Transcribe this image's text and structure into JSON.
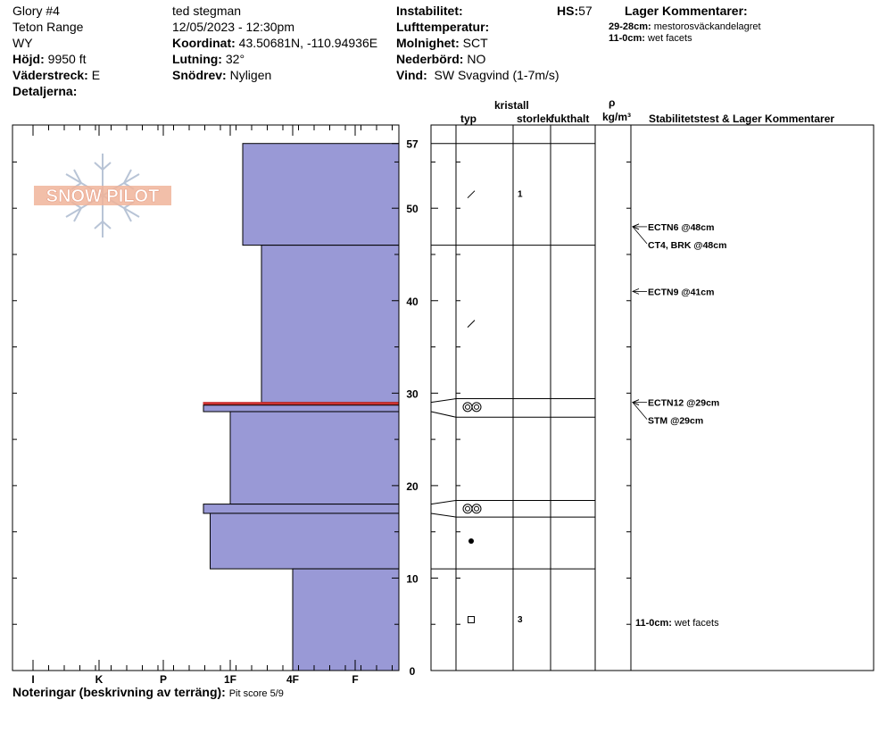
{
  "header": {
    "location": "Glory #4",
    "range": "Teton Range",
    "state": "WY",
    "elevation_label": "Höjd:",
    "elevation_value": "9950 ft",
    "aspect_label": "Väderstreck:",
    "aspect_value": "E",
    "details_label": "Detaljerna:",
    "observer": "ted stegman",
    "datetime": "12/05/2023 - 12:30pm",
    "coord_label": "Koordinat:",
    "coord_value": "43.50681N, -110.94936E",
    "slope_label": "Lutning:",
    "slope_value": "32°",
    "drift_label": "Snödrev:",
    "drift_value": "Nyligen",
    "instability_label": "Instabilitet:",
    "airtemp_label": "Lufttemperatur:",
    "sky_label": "Molnighet:",
    "sky_value": "SCT",
    "precip_label": "Nederbörd:",
    "precip_value": "NO",
    "wind_label": "Vind:",
    "wind_value": "SW Svagvind (1-7m/s)",
    "hs_label": "HS:",
    "hs_value": "57",
    "layer_comments_title": "Lager Kommentarer:",
    "layer_comments": [
      {
        "depth": "29-28cm:",
        "text": "mestorosväckandelagret"
      },
      {
        "depth": "11-0cm:",
        "text": "wet facets"
      }
    ]
  },
  "logo_text": "SNOW PILOT",
  "columns": {
    "crystal": "kristall",
    "type": "typ",
    "size": "storlek",
    "moisture": "fukthalt",
    "rho": "ρ",
    "density_unit": "kg/m³",
    "stability": "Stabilitetstest & Lager Kommentarer"
  },
  "notes_label": "Noteringar (beskrivning av terräng):",
  "notes_value": "Pit score 5/9",
  "colors": {
    "layer_fill": "#9999d6",
    "weak_layer": "#cc3333",
    "snowflake": "#b8c4d6",
    "logo_orange": "#f0b49a"
  },
  "chart_data": {
    "type": "bar",
    "orientation": "horizontal",
    "y_unit": "cm",
    "ylim": [
      0,
      59
    ],
    "y_ticks": [
      0,
      10,
      20,
      30,
      40,
      50,
      57
    ],
    "hardness_scale": [
      "I",
      "K",
      "P",
      "1F",
      "4F",
      "F"
    ],
    "hardness_numeric_note": "0=F,1=4F,2=1F,3=P,4=K,5=I",
    "layers": [
      {
        "top": 57,
        "bottom": 46,
        "hardness_value": 1.8
      },
      {
        "top": 46,
        "bottom": 29,
        "hardness_value": 1.5
      },
      {
        "top": 29,
        "bottom": 28.7,
        "hardness_value": 2.4,
        "weak": true
      },
      {
        "top": 28.7,
        "bottom": 28,
        "hardness_value": 2.4
      },
      {
        "top": 28,
        "bottom": 18,
        "hardness_value": 2.0
      },
      {
        "top": 18,
        "bottom": 17,
        "hardness_value": 2.4
      },
      {
        "top": 17,
        "bottom": 11,
        "hardness_value": 2.3
      },
      {
        "top": 11,
        "bottom": 0,
        "hardness_value": 1.0
      }
    ],
    "crystals": [
      {
        "depth": 51.5,
        "symbol": "decomposing",
        "size": "1"
      },
      {
        "depth": 37.5,
        "symbol": "decomposing",
        "size": ""
      },
      {
        "depth": 28.5,
        "symbol": "surface-hoar-pair",
        "size": ""
      },
      {
        "depth": 17.5,
        "symbol": "surface-hoar-pair",
        "size": ""
      },
      {
        "depth": 14,
        "symbol": "melt-dot",
        "size": ""
      },
      {
        "depth": 5.5,
        "symbol": "faceted",
        "size": "3"
      }
    ],
    "stability_tests": [
      {
        "label": "ECTN6 @48cm",
        "depth": 48,
        "offset": 0
      },
      {
        "label": "CT4, BRK @48cm",
        "depth": 48,
        "offset": 1
      },
      {
        "label": "ECTN9 @41cm",
        "depth": 41,
        "offset": 0
      },
      {
        "label": "ECTN12 @29cm",
        "depth": 29,
        "offset": 0
      },
      {
        "label": "STM @29cm",
        "depth": 29,
        "offset": 1
      }
    ],
    "bottom_comment": {
      "depth_label": "11-0cm:",
      "text": "wet facets",
      "depth": 5.5
    }
  }
}
